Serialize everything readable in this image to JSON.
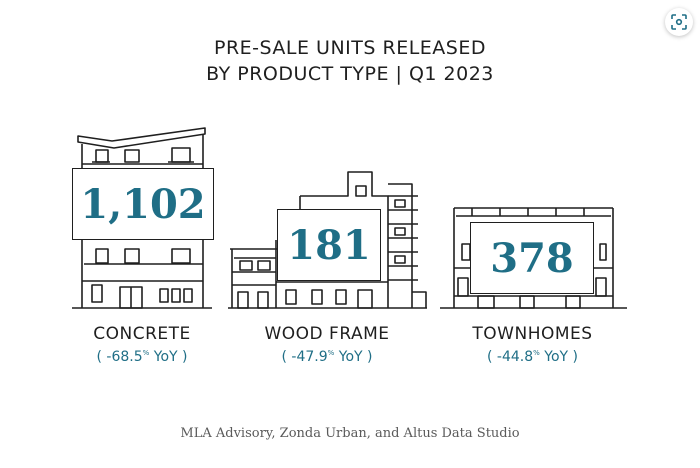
{
  "title": {
    "line1": "PRE-SALE UNITS RELEASED",
    "line2": "BY PRODUCT TYPE  |  Q1 2023"
  },
  "items": [
    {
      "label": "CONCRETE",
      "value": "1,102",
      "yoy_prefix": "( -68.5",
      "yoy_suffix": " YoY )"
    },
    {
      "label": "WOOD FRAME",
      "value": "181",
      "yoy_prefix": "( -47.9",
      "yoy_suffix": " YoY )"
    },
    {
      "label": "TOWNHOMES",
      "value": "378",
      "yoy_prefix": "( -44.8",
      "yoy_suffix": " YoY )"
    }
  ],
  "percent_sign": "%",
  "footer": "MLA Advisory, Zonda Urban, and Altus Data Studio",
  "colors": {
    "accent": "#1f6e86",
    "line": "#1f1f1f"
  },
  "icons": {
    "scan_button": "screenshot-scan-icon"
  }
}
